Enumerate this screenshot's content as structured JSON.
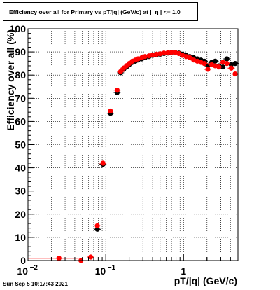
{
  "title": "Efficiency over all for Primary vs pT/|q| (GeV/c) at |  η | <= 1.0",
  "timestamp": "Sun Sep  5 10:17:43 2021",
  "colors": {
    "series_black": "#000000",
    "series_red": "#ff0000",
    "grid": "#000000"
  },
  "chart_data": {
    "type": "scatter",
    "xlabel": "pT/|q| (GeV/c)",
    "ylabel": "Efficiency over all (%)",
    "xscale": "log",
    "xlim": [
      0.01,
      5.0
    ],
    "ylim": [
      0,
      100
    ],
    "grid": true,
    "x_tick_labels": [
      {
        "x": 0.01,
        "text": "10",
        "sup": "−2"
      },
      {
        "x": 0.1,
        "text": "10",
        "sup": "−1"
      },
      {
        "x": 1,
        "text": "1",
        "sup": ""
      }
    ],
    "y_ticks": [
      0,
      10,
      20,
      30,
      40,
      50,
      60,
      70,
      80,
      90,
      100
    ],
    "series": [
      {
        "color": "#000000",
        "points": [
          {
            "x": 0.078,
            "y": 13.5
          },
          {
            "x": 0.092,
            "y": 41.5
          },
          {
            "x": 0.115,
            "y": 63.5
          },
          {
            "x": 0.14,
            "y": 72.5
          },
          {
            "x": 0.155,
            "y": 81.0
          },
          {
            "x": 0.17,
            "y": 82.5
          },
          {
            "x": 0.185,
            "y": 83.5
          },
          {
            "x": 0.2,
            "y": 84.5
          },
          {
            "x": 0.22,
            "y": 85.5
          },
          {
            "x": 0.24,
            "y": 86.0
          },
          {
            "x": 0.26,
            "y": 86.5
          },
          {
            "x": 0.29,
            "y": 87.0
          },
          {
            "x": 0.32,
            "y": 87.5
          },
          {
            "x": 0.36,
            "y": 88.0
          },
          {
            "x": 0.4,
            "y": 88.5
          },
          {
            "x": 0.45,
            "y": 88.8
          },
          {
            "x": 0.5,
            "y": 89.0
          },
          {
            "x": 0.56,
            "y": 89.3
          },
          {
            "x": 0.63,
            "y": 89.5
          },
          {
            "x": 0.7,
            "y": 89.7
          },
          {
            "x": 0.78,
            "y": 89.8
          },
          {
            "x": 0.87,
            "y": 89.5
          },
          {
            "x": 0.97,
            "y": 89.0
          },
          {
            "x": 1.08,
            "y": 88.5
          },
          {
            "x": 1.2,
            "y": 88.0
          },
          {
            "x": 1.35,
            "y": 87.5
          },
          {
            "x": 1.5,
            "y": 87.0
          },
          {
            "x": 1.67,
            "y": 86.5
          },
          {
            "x": 1.85,
            "y": 86.0
          },
          {
            "x": 2.05,
            "y": 84.0
          },
          {
            "x": 2.3,
            "y": 85.5
          },
          {
            "x": 2.55,
            "y": 86.0
          },
          {
            "x": 2.85,
            "y": 84.0
          },
          {
            "x": 3.2,
            "y": 83.5
          },
          {
            "x": 3.6,
            "y": 87.0
          },
          {
            "x": 4.1,
            "y": 84.5
          },
          {
            "x": 4.6,
            "y": 85.0
          }
        ]
      },
      {
        "color": "#ff0000",
        "points": [
          {
            "x": 0.025,
            "y": 1.0
          },
          {
            "x": 0.048,
            "y": 0.0
          },
          {
            "x": 0.064,
            "y": 1.5
          },
          {
            "x": 0.078,
            "y": 15.0
          },
          {
            "x": 0.092,
            "y": 42.0
          },
          {
            "x": 0.115,
            "y": 64.5
          },
          {
            "x": 0.14,
            "y": 73.5
          },
          {
            "x": 0.155,
            "y": 81.5
          },
          {
            "x": 0.17,
            "y": 83.0
          },
          {
            "x": 0.185,
            "y": 84.0
          },
          {
            "x": 0.2,
            "y": 85.0
          },
          {
            "x": 0.22,
            "y": 86.0
          },
          {
            "x": 0.24,
            "y": 86.5
          },
          {
            "x": 0.26,
            "y": 87.0
          },
          {
            "x": 0.29,
            "y": 87.5
          },
          {
            "x": 0.32,
            "y": 88.0
          },
          {
            "x": 0.36,
            "y": 88.3
          },
          {
            "x": 0.4,
            "y": 88.7
          },
          {
            "x": 0.45,
            "y": 89.0
          },
          {
            "x": 0.5,
            "y": 89.2
          },
          {
            "x": 0.56,
            "y": 89.5
          },
          {
            "x": 0.63,
            "y": 89.7
          },
          {
            "x": 0.7,
            "y": 89.8
          },
          {
            "x": 0.78,
            "y": 89.8
          },
          {
            "x": 0.87,
            "y": 89.3
          },
          {
            "x": 0.97,
            "y": 88.5
          },
          {
            "x": 1.08,
            "y": 88.0
          },
          {
            "x": 1.2,
            "y": 87.5
          },
          {
            "x": 1.35,
            "y": 86.5
          },
          {
            "x": 1.5,
            "y": 86.0
          },
          {
            "x": 1.67,
            "y": 85.5
          },
          {
            "x": 1.85,
            "y": 85.0
          },
          {
            "x": 2.05,
            "y": 82.5
          },
          {
            "x": 2.3,
            "y": 84.5
          },
          {
            "x": 2.55,
            "y": 84.0
          },
          {
            "x": 2.85,
            "y": 83.5
          },
          {
            "x": 3.2,
            "y": 85.5
          },
          {
            "x": 3.6,
            "y": 85.0
          },
          {
            "x": 4.1,
            "y": 83.0
          },
          {
            "x": 4.6,
            "y": 80.5
          }
        ]
      }
    ]
  }
}
